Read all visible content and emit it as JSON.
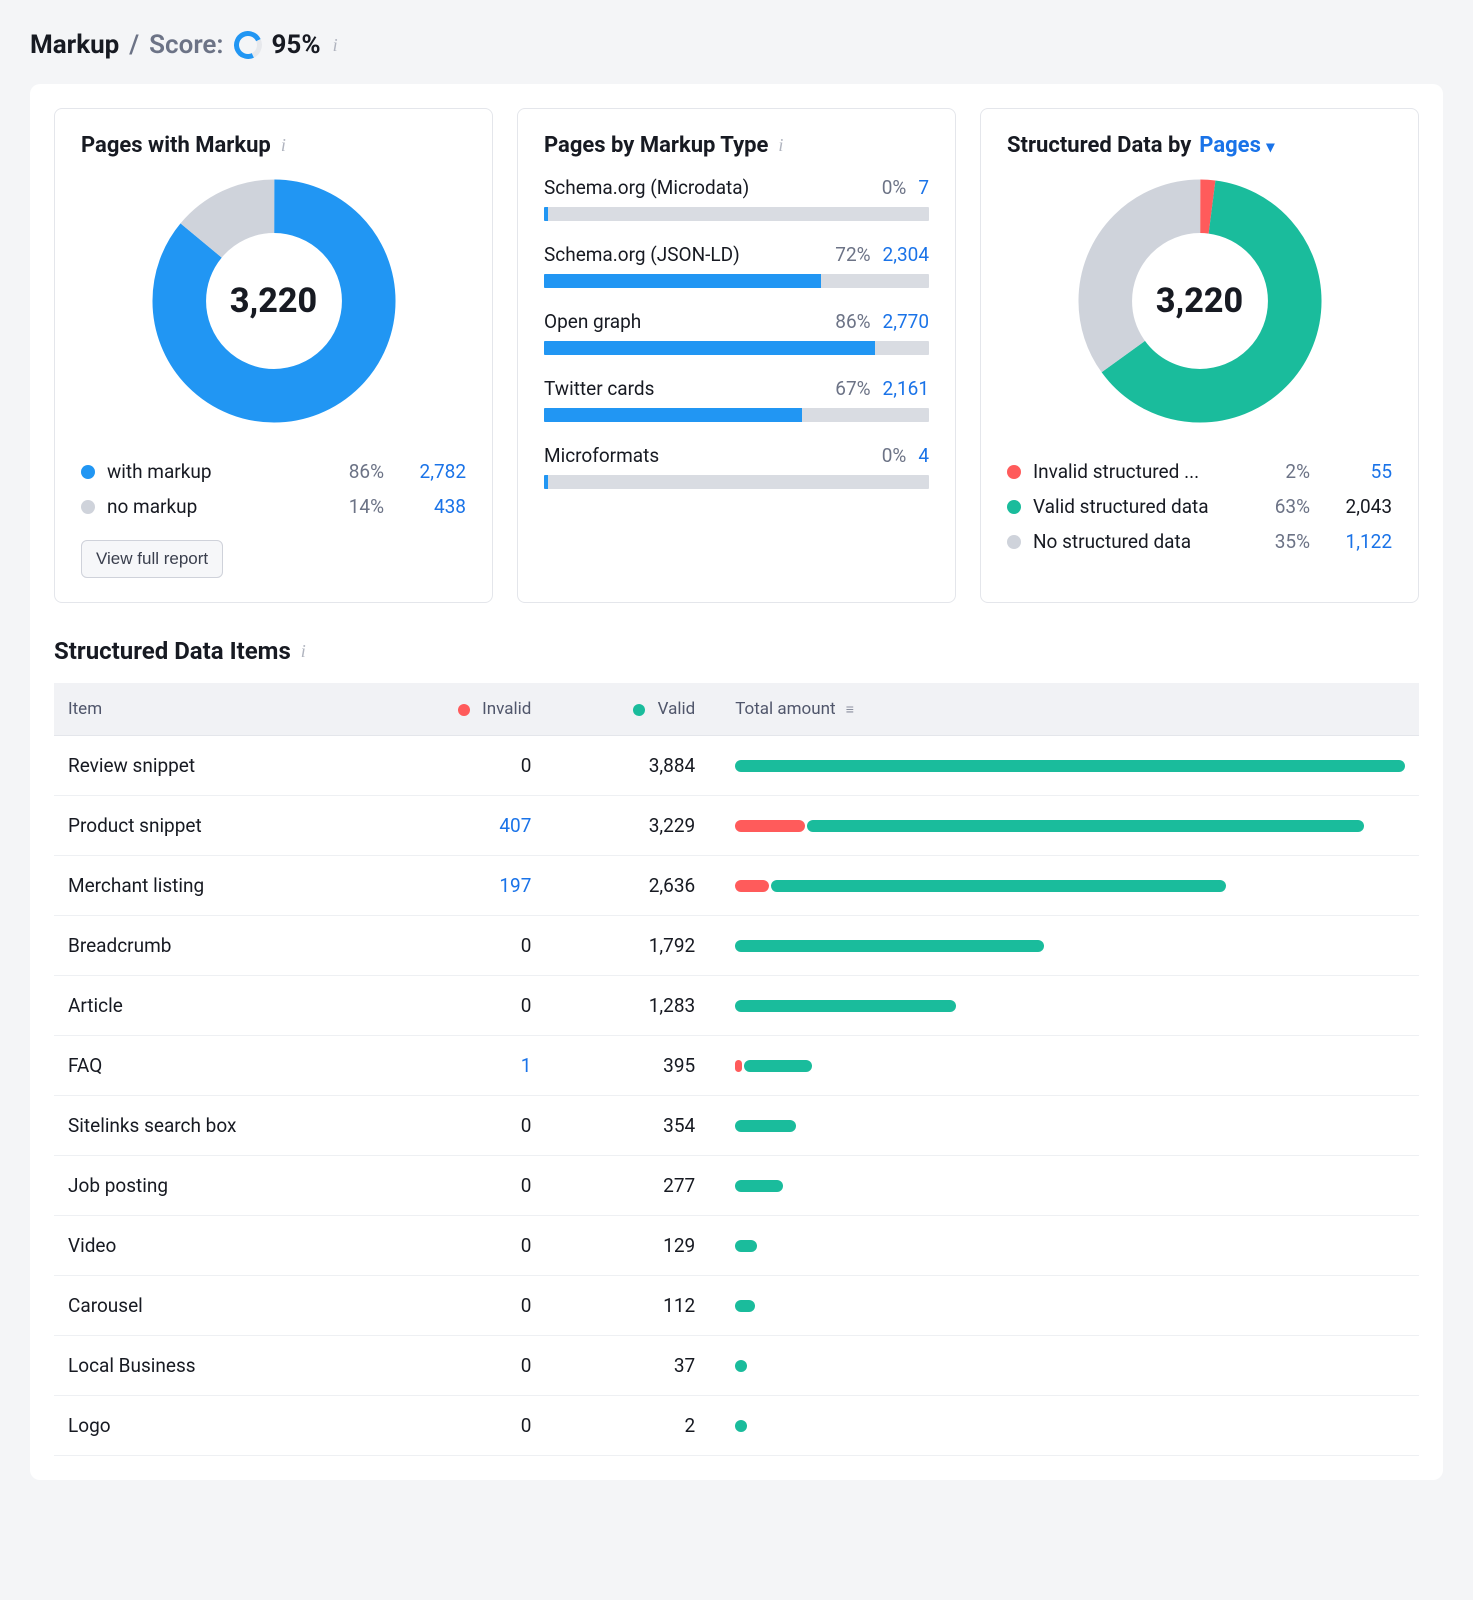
{
  "header": {
    "title": "Markup",
    "slash": "/",
    "score_label": "Score:",
    "score_value": "95%",
    "score_ring_fill_pct": 95,
    "colors": {
      "ring": "#2196f3",
      "ring_bg": "#e6e8ec"
    }
  },
  "cards": {
    "pages_with_markup": {
      "title": "Pages with Markup",
      "donut": {
        "center_value": "3,220",
        "segments": [
          {
            "label": "with markup",
            "pct": 86,
            "value": "2,782",
            "color": "#2196f3",
            "value_is_link": true
          },
          {
            "label": "no markup",
            "pct": 14,
            "value": "438",
            "color": "#cfd3db",
            "value_is_link": true
          }
        ]
      },
      "button": "View full report"
    },
    "pages_by_markup_type": {
      "title": "Pages by Markup Type",
      "bars": [
        {
          "label": "Schema.org (Microdata)",
          "pct": 0,
          "pct_label": "0%",
          "value": "7",
          "color": "#2196f3",
          "thin": true
        },
        {
          "label": "Schema.org (JSON-LD)",
          "pct": 72,
          "pct_label": "72%",
          "value": "2,304",
          "color": "#2196f3"
        },
        {
          "label": "Open graph",
          "pct": 86,
          "pct_label": "86%",
          "value": "2,770",
          "color": "#2196f3"
        },
        {
          "label": "Twitter cards",
          "pct": 67,
          "pct_label": "67%",
          "value": "2,161",
          "color": "#2196f3"
        },
        {
          "label": "Microformats",
          "pct": 0,
          "pct_label": "0%",
          "value": "4",
          "color": "#2196f3",
          "thin": true
        }
      ]
    },
    "structured_data_by": {
      "title_prefix": "Structured Data by",
      "dropdown": "Pages",
      "donut": {
        "center_value": "3,220",
        "segments": [
          {
            "label": "Invalid structured ...",
            "pct": 2,
            "value": "55",
            "color": "#ff5b5b",
            "value_is_link": true
          },
          {
            "label": "Valid structured data",
            "pct": 63,
            "value": "2,043",
            "color": "#1abc9c",
            "value_is_link": false
          },
          {
            "label": "No structured data",
            "pct": 35,
            "value": "1,122",
            "color": "#cfd3db",
            "value_is_link": true
          }
        ]
      }
    }
  },
  "structured_items": {
    "title": "Structured Data Items",
    "columns": {
      "item": "Item",
      "invalid": "Invalid",
      "valid": "Valid",
      "total": "Total amount"
    },
    "colors": {
      "invalid": "#ff5b5b",
      "valid": "#1abc9c",
      "track": "#ffffff"
    },
    "max_total": 3884,
    "rows": [
      {
        "item": "Review snippet",
        "invalid": 0,
        "valid": "3,884",
        "invalid_bar": 0,
        "valid_bar": 3884
      },
      {
        "item": "Product snippet",
        "invalid": 407,
        "invalid_link": true,
        "valid": "3,229",
        "invalid_bar": 407,
        "valid_bar": 3229
      },
      {
        "item": "Merchant listing",
        "invalid": 197,
        "invalid_link": true,
        "valid": "2,636",
        "invalid_bar": 197,
        "valid_bar": 2636
      },
      {
        "item": "Breadcrumb",
        "invalid": 0,
        "valid": "1,792",
        "invalid_bar": 0,
        "valid_bar": 1792
      },
      {
        "item": "Article",
        "invalid": 0,
        "valid": "1,283",
        "invalid_bar": 0,
        "valid_bar": 1283
      },
      {
        "item": "FAQ",
        "invalid": 1,
        "invalid_link": true,
        "valid": "395",
        "invalid_bar": 1,
        "valid_bar": 395
      },
      {
        "item": "Sitelinks search box",
        "invalid": 0,
        "valid": "354",
        "invalid_bar": 0,
        "valid_bar": 354
      },
      {
        "item": "Job posting",
        "invalid": 0,
        "valid": "277",
        "invalid_bar": 0,
        "valid_bar": 277
      },
      {
        "item": "Video",
        "invalid": 0,
        "valid": "129",
        "invalid_bar": 0,
        "valid_bar": 129
      },
      {
        "item": "Carousel",
        "invalid": 0,
        "valid": "112",
        "invalid_bar": 0,
        "valid_bar": 112
      },
      {
        "item": "Local Business",
        "invalid": 0,
        "valid": "37",
        "invalid_bar": 0,
        "valid_bar": 37
      },
      {
        "item": "Logo",
        "invalid": 0,
        "valid": "2",
        "invalid_bar": 0,
        "valid_bar": 2
      }
    ]
  }
}
